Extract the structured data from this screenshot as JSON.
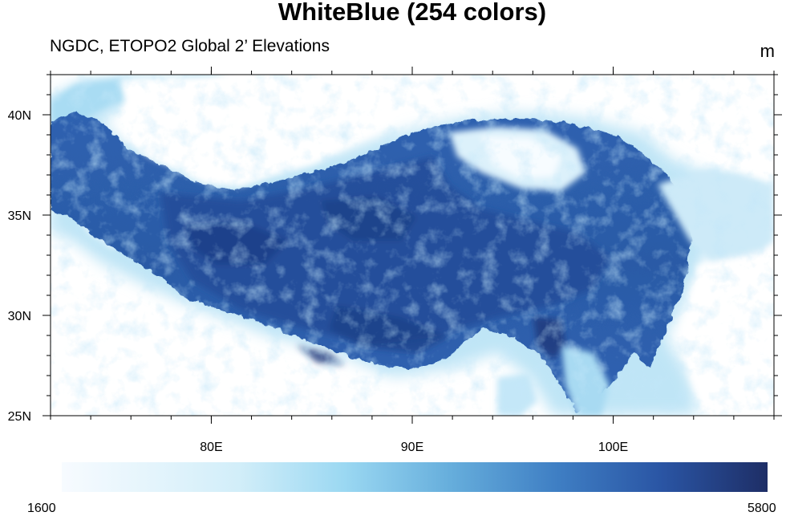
{
  "title": "WhiteBlue (254 colors)",
  "subtitle": "NGDC, ETOPO2 Global 2’ Elevations",
  "units": "m",
  "map": {
    "region": "Tibetan Plateau",
    "projection": "cylindrical equidistant",
    "lon_range": [
      72,
      108
    ],
    "lat_range": [
      25,
      42
    ],
    "variable": "elevation",
    "colormap": "WhiteBlue",
    "color_count": 254,
    "colors": {
      "low": "#f7fbff",
      "mid": "#8fd0ef",
      "high": "#1e2e66",
      "border": "#000000",
      "background": "#ffffff"
    }
  },
  "axes": {
    "x_ticks": [
      {
        "value": 80,
        "label": "80E"
      },
      {
        "value": 90,
        "label": "90E"
      },
      {
        "value": 100,
        "label": "100E"
      }
    ],
    "y_ticks": [
      {
        "value": 40,
        "label": "40N"
      },
      {
        "value": 35,
        "label": "35N"
      },
      {
        "value": 30,
        "label": "30N"
      },
      {
        "value": 25,
        "label": "25N"
      }
    ]
  },
  "colorbar": {
    "min_label": "1600",
    "max_label": "5800",
    "min": 1600,
    "max": 5800,
    "orientation": "horizontal"
  }
}
